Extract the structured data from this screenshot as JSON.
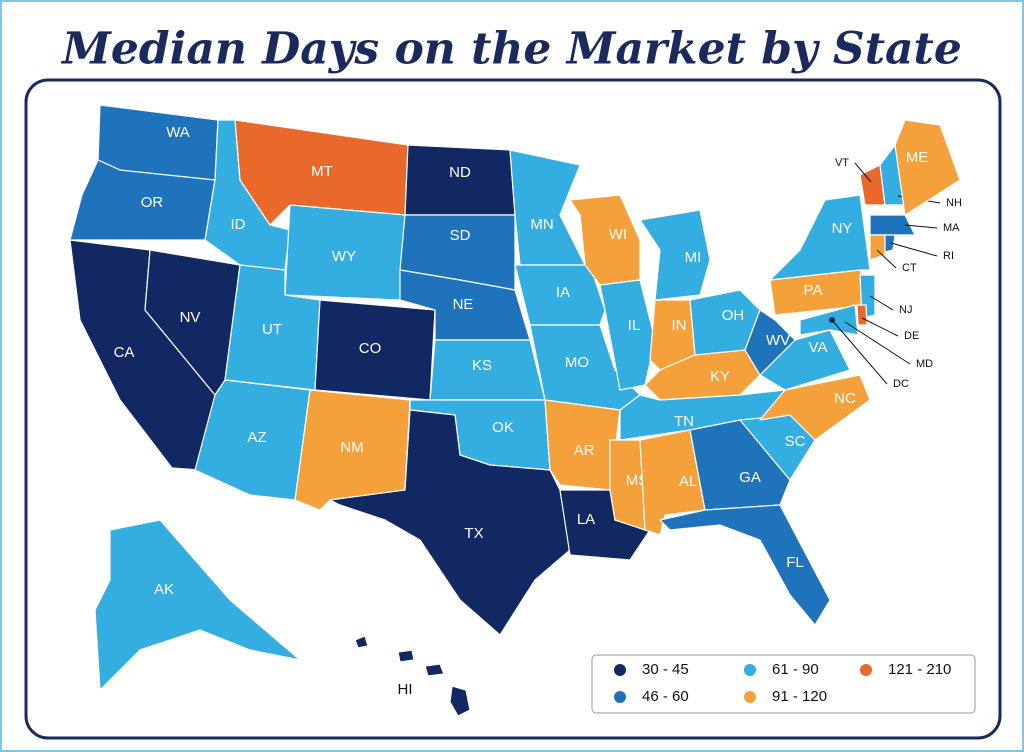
{
  "title": "Median Days on the Market by State",
  "legend": [
    {
      "label": "30 - 45",
      "color": "#112863"
    },
    {
      "label": "46 - 60",
      "color": "#1f73bb"
    },
    {
      "label": "61 - 90",
      "color": "#34ade0"
    },
    {
      "label": "91 - 120",
      "color": "#f5a13b"
    },
    {
      "label": "121 - 210",
      "color": "#e8692a"
    }
  ],
  "states": [
    {
      "label": "WA",
      "color": "#1f73bb"
    },
    {
      "label": "OR",
      "color": "#1f73bb"
    },
    {
      "label": "CA",
      "color": "#112863"
    },
    {
      "label": "NV",
      "color": "#112863"
    },
    {
      "label": "ID",
      "color": "#34ade0"
    },
    {
      "label": "MT",
      "color": "#e8692a"
    },
    {
      "label": "WY",
      "color": "#34ade0"
    },
    {
      "label": "UT",
      "color": "#34ade0"
    },
    {
      "label": "CO",
      "color": "#112863"
    },
    {
      "label": "AZ",
      "color": "#34ade0"
    },
    {
      "label": "NM",
      "color": "#f5a13b"
    },
    {
      "label": "ND",
      "color": "#112863"
    },
    {
      "label": "SD",
      "color": "#1f73bb"
    },
    {
      "label": "NE",
      "color": "#1f73bb"
    },
    {
      "label": "KS",
      "color": "#34ade0"
    },
    {
      "label": "OK",
      "color": "#34ade0"
    },
    {
      "label": "TX",
      "color": "#112863"
    },
    {
      "label": "MN",
      "color": "#34ade0"
    },
    {
      "label": "IA",
      "color": "#34ade0"
    },
    {
      "label": "MO",
      "color": "#34ade0"
    },
    {
      "label": "AR",
      "color": "#f5a13b"
    },
    {
      "label": "LA",
      "color": "#112863"
    },
    {
      "label": "WI",
      "color": "#f5a13b"
    },
    {
      "label": "IL",
      "color": "#34ade0"
    },
    {
      "label": "MI",
      "color": "#34ade0"
    },
    {
      "label": "IN",
      "color": "#f5a13b"
    },
    {
      "label": "OH",
      "color": "#34ade0"
    },
    {
      "label": "KY",
      "color": "#f5a13b"
    },
    {
      "label": "TN",
      "color": "#34ade0"
    },
    {
      "label": "MS",
      "color": "#f5a13b"
    },
    {
      "label": "AL",
      "color": "#f5a13b"
    },
    {
      "label": "GA",
      "color": "#1f73bb"
    },
    {
      "label": "FL",
      "color": "#1f73bb"
    },
    {
      "label": "SC",
      "color": "#34ade0"
    },
    {
      "label": "NC",
      "color": "#f5a13b"
    },
    {
      "label": "VA",
      "color": "#34ade0"
    },
    {
      "label": "WV",
      "color": "#1f73bb"
    },
    {
      "label": "PA",
      "color": "#f5a13b"
    },
    {
      "label": "NY",
      "color": "#34ade0"
    },
    {
      "label": "VT",
      "color": "#e8692a"
    },
    {
      "label": "NH",
      "color": "#34ade0"
    },
    {
      "label": "ME",
      "color": "#f5a13b"
    },
    {
      "label": "MA",
      "color": "#1f73bb"
    },
    {
      "label": "CT",
      "color": "#f5a13b"
    },
    {
      "label": "RI",
      "color": "#1f73bb"
    },
    {
      "label": "NJ",
      "color": "#34ade0"
    },
    {
      "label": "DE",
      "color": "#e8692a"
    },
    {
      "label": "MD",
      "color": "#34ade0"
    },
    {
      "label": "DC",
      "color": "#112863"
    },
    {
      "label": "AK",
      "color": "#34ade0"
    },
    {
      "label": "HI",
      "color": "#112863"
    }
  ]
}
